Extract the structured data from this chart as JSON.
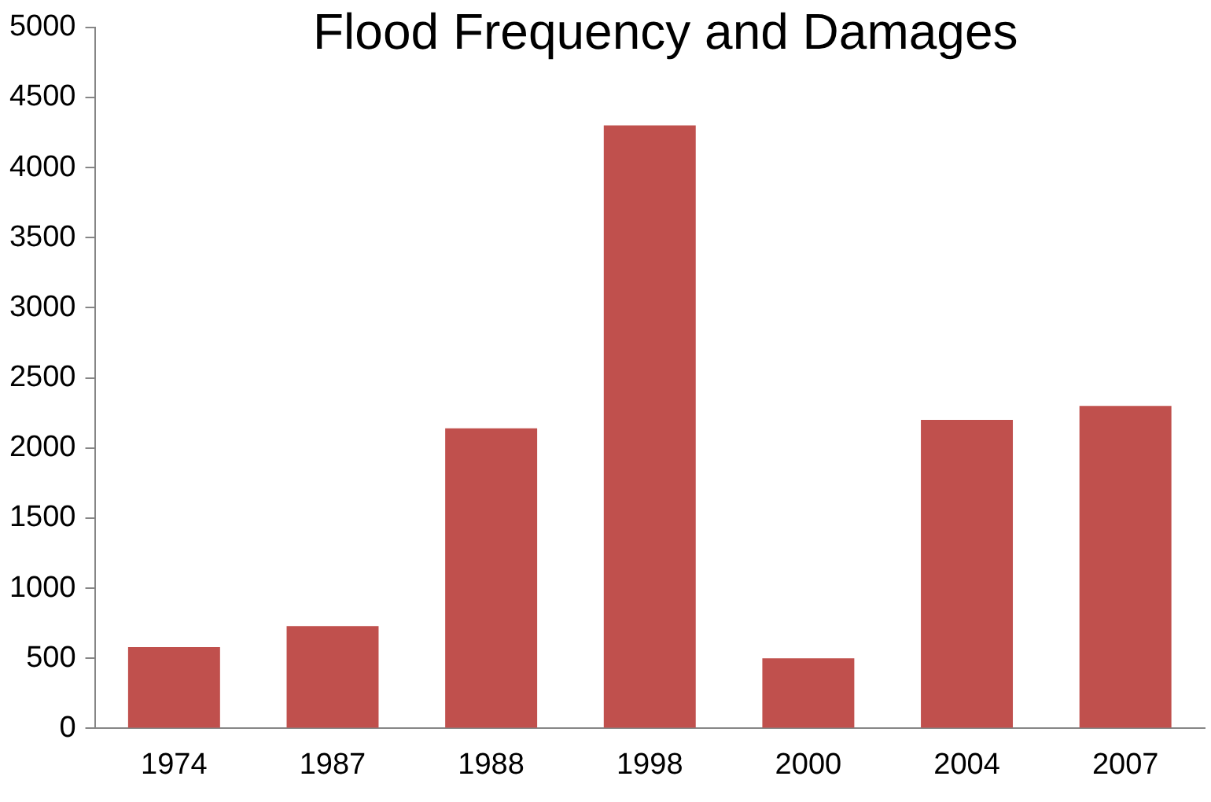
{
  "chart_data": {
    "type": "bar",
    "title": "Flood Frequency and Damages",
    "categories": [
      "1974",
      "1987",
      "1988",
      "1998",
      "2000",
      "2004",
      "2007"
    ],
    "values": [
      580,
      730,
      2140,
      4300,
      500,
      2200,
      2300
    ],
    "color": "#c0504d",
    "ylim": [
      0,
      5000
    ],
    "yticks": [
      0,
      500,
      1000,
      1500,
      2000,
      2500,
      3000,
      3500,
      4000,
      4500,
      5000
    ],
    "grid": false,
    "legend": false
  }
}
